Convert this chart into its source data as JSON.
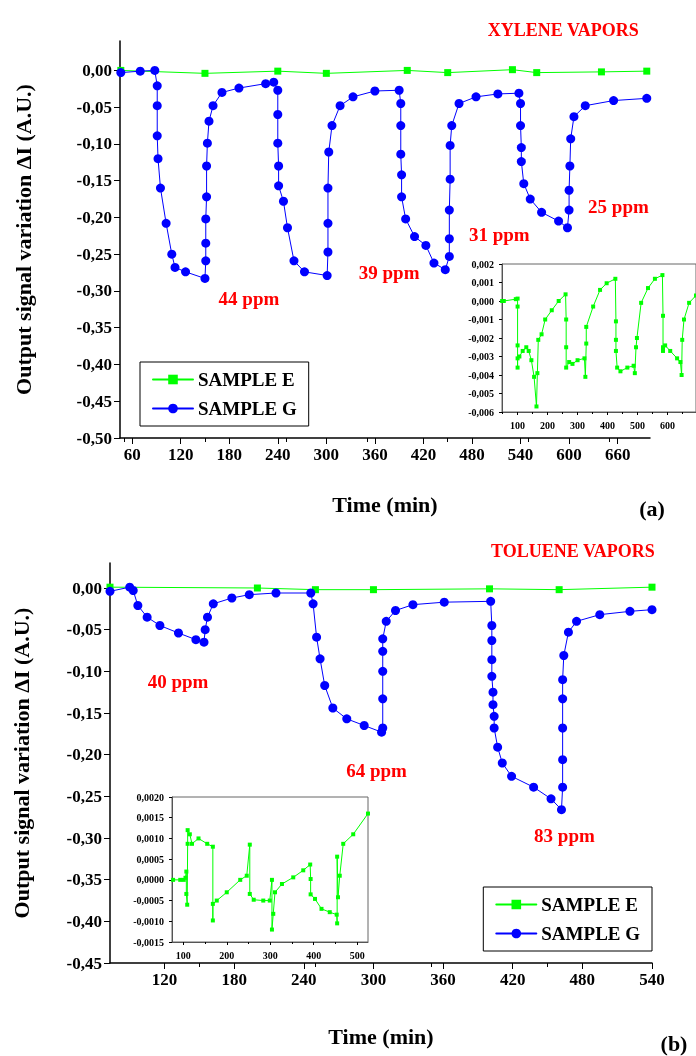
{
  "chart_data": [
    {
      "type": "line",
      "title": "XYLENE VAPORS",
      "xlabel": "Time (min)",
      "ylabel": "Output signal variation ΔI (A.U.)",
      "legend": "bottom left",
      "xlim": [
        45,
        700
      ],
      "xticks": [
        60,
        120,
        180,
        240,
        300,
        360,
        420,
        480,
        540,
        600,
        660
      ],
      "ylim": [
        -0.5,
        0.04
      ],
      "yticks": [
        {
          "value": 0,
          "label": "0,00"
        },
        {
          "value": -0.05,
          "label": "-0,05"
        },
        {
          "value": -0.1,
          "label": "-0,10"
        },
        {
          "value": -0.15,
          "label": "-0,15"
        },
        {
          "value": -0.2,
          "label": "-0,20"
        },
        {
          "value": -0.25,
          "label": "-0,25"
        },
        {
          "value": -0.3,
          "label": "-0,30"
        },
        {
          "value": -0.35,
          "label": "-0,35"
        },
        {
          "value": -0.4,
          "label": "-0,40"
        },
        {
          "value": -0.45,
          "label": "-0,45"
        },
        {
          "value": -0.5,
          "label": "-0,50"
        }
      ],
      "series": [
        {
          "name": "SAMPLE E",
          "color": "#00ff00",
          "marker": "square",
          "x": [
            46,
            150,
            240,
            300,
            400,
            450,
            530,
            560,
            640,
            696
          ],
          "values": [
            0,
            -0.004,
            -0.001,
            -0.004,
            0,
            -0.003,
            0.001,
            -0.003,
            -0.002,
            -0.001
          ]
        },
        {
          "name": "SAMPLE G",
          "color": "#0000ff",
          "marker": "circle",
          "x": [
            46,
            70,
            88,
            91,
            91,
            91,
            92,
            95,
            102,
            109,
            113,
            126,
            150,
            151,
            151,
            151,
            152,
            152,
            153,
            155,
            160,
            171,
            192,
            225,
            235,
            240,
            240,
            240,
            241,
            241,
            247,
            252,
            260,
            273,
            301,
            302,
            302,
            302,
            303,
            307,
            317,
            333,
            360,
            390,
            392,
            392,
            392,
            393,
            393,
            398,
            409,
            423,
            433,
            447,
            452,
            452,
            452,
            453,
            453,
            455,
            464,
            485,
            512,
            538,
            540,
            540,
            541,
            541,
            544,
            552,
            566,
            587,
            598,
            600,
            600,
            601,
            602,
            606,
            620,
            655,
            696
          ],
          "values": [
            -0.003,
            -0.001,
            0,
            -0.021,
            -0.048,
            -0.089,
            -0.12,
            -0.16,
            -0.208,
            -0.25,
            -0.268,
            -0.274,
            -0.283,
            -0.259,
            -0.235,
            -0.202,
            -0.172,
            -0.13,
            -0.099,
            -0.069,
            -0.048,
            -0.03,
            -0.024,
            -0.018,
            -0.016,
            -0.027,
            -0.06,
            -0.099,
            -0.13,
            -0.157,
            -0.178,
            -0.214,
            -0.259,
            -0.274,
            -0.279,
            -0.247,
            -0.208,
            -0.16,
            -0.111,
            -0.075,
            -0.048,
            -0.036,
            -0.028,
            -0.027,
            -0.045,
            -0.075,
            -0.114,
            -0.142,
            -0.172,
            -0.202,
            -0.226,
            -0.238,
            -0.262,
            -0.271,
            -0.253,
            -0.229,
            -0.19,
            -0.148,
            -0.102,
            -0.075,
            -0.045,
            -0.036,
            -0.032,
            -0.031,
            -0.045,
            -0.075,
            -0.105,
            -0.124,
            -0.154,
            -0.175,
            -0.193,
            -0.205,
            -0.214,
            -0.19,
            -0.163,
            -0.13,
            -0.093,
            -0.063,
            -0.048,
            -0.041,
            -0.038
          ]
        }
      ],
      "annotations": [
        {
          "text": "44 ppm",
          "x": 150,
          "y": -0.283
        },
        {
          "text": "39 ppm",
          "x": 301,
          "y": -0.279
        },
        {
          "text": "31 ppm",
          "x": 447,
          "y": -0.271
        },
        {
          "text": "25 ppm",
          "x": 598,
          "y": -0.214
        },
        "(a)"
      ]
    },
    {
      "type": "line",
      "xlim": [
        48,
        695
      ],
      "xticks": [
        100,
        200,
        300,
        400,
        500,
        600
      ],
      "ylim": [
        -0.006,
        0.002
      ],
      "yticks": [
        {
          "value": 0.002,
          "label": "0,002"
        },
        {
          "value": 0.001,
          "label": "0,001"
        },
        {
          "value": 0,
          "label": "0,000"
        },
        {
          "value": -0.001,
          "label": "-0,001"
        },
        {
          "value": -0.002,
          "label": "-0,002"
        },
        {
          "value": -0.003,
          "label": "-0,003"
        },
        {
          "value": -0.004,
          "label": "-0,004"
        },
        {
          "value": -0.005,
          "label": "-0,005"
        },
        {
          "value": -0.006,
          "label": "-0,006"
        }
      ],
      "series": [
        {
          "color": "#00ff00",
          "marker": "square",
          "x": [
            48.5,
            54,
            94,
            100,
            100,
            100,
            100,
            100,
            106,
            117,
            129,
            137,
            146,
            155,
            163,
            166,
            169,
            180,
            192,
            214,
            237,
            260,
            262,
            262,
            262,
            272,
            283,
            300,
            323,
            326,
            329,
            329,
            352,
            375,
            397,
            426,
            428,
            428,
            428,
            432,
            443,
            466,
            487,
            491,
            495,
            498,
            512,
            535,
            558,
            583,
            585,
            585,
            585,
            592,
            609,
            632,
            643,
            647,
            649,
            655,
            672,
            695
          ],
          "values": [
            0,
            0,
            0.0001,
            0.00013,
            -0.0003,
            -0.0024,
            -0.0036,
            -0.0031,
            -0.003,
            -0.0027,
            -0.0025,
            -0.0027,
            -0.0032,
            -0.0041,
            -0.0057,
            -0.0039,
            -0.0021,
            -0.0018,
            -0.001,
            -0.0005,
            0,
            0.00036,
            -0.001,
            -0.0025,
            -0.0036,
            -0.0033,
            -0.0034,
            -0.0032,
            -0.0031,
            -0.0041,
            -0.0023,
            -0.0014,
            -0.0003,
            0.0006,
            0.00096,
            0.0012,
            -0.0011,
            -0.0021,
            -0.0027,
            -0.0036,
            -0.0038,
            -0.0036,
            -0.0035,
            -0.0039,
            -0.0025,
            -0.002,
            -0.0001,
            0.0007,
            0.0012,
            0.0014,
            -0.0008,
            -0.0025,
            -0.0027,
            -0.0024,
            -0.0027,
            -0.0031,
            -0.0033,
            -0.004,
            -0.0021,
            -0.001,
            -0.0001,
            0.0003
          ]
        }
      ]
    },
    {
      "type": "line",
      "title": "TOLUENE VAPORS",
      "xlabel": "Time (min)",
      "ylabel": "Output signal variation ΔI (A.U.)",
      "legend": "bottom right",
      "xlim": [
        73,
        540
      ],
      "xticks": [
        120,
        180,
        240,
        300,
        360,
        420,
        480,
        540
      ],
      "ylim": [
        -0.45,
        0.03
      ],
      "yticks": [
        {
          "value": 0,
          "label": "0,00"
        },
        {
          "value": -0.05,
          "label": "-0,05"
        },
        {
          "value": -0.1,
          "label": "-0,10"
        },
        {
          "value": -0.15,
          "label": "-0,15"
        },
        {
          "value": -0.2,
          "label": "-0,20"
        },
        {
          "value": -0.25,
          "label": "-0,25"
        },
        {
          "value": -0.3,
          "label": "-0,30"
        },
        {
          "value": -0.35,
          "label": "-0,35"
        },
        {
          "value": -0.4,
          "label": "-0,40"
        },
        {
          "value": -0.45,
          "label": "-0,45"
        }
      ],
      "series": [
        {
          "name": "SAMPLE E",
          "color": "#00ff00",
          "marker": "square",
          "x": [
            73,
            200,
            250,
            300,
            400,
            460,
            540
          ],
          "values": [
            0.001,
            0,
            -0.002,
            -0.002,
            -0.001,
            -0.002,
            0.001
          ]
        },
        {
          "name": "SAMPLE G",
          "color": "#0000ff",
          "marker": "circle",
          "x": [
            73,
            90,
            93,
            97,
            105,
            116,
            132,
            147,
            154,
            155,
            157,
            162,
            178,
            193,
            216,
            246,
            248,
            251,
            254,
            258,
            265,
            277,
            292,
            307,
            308,
            308,
            308,
            308,
            308,
            311,
            319,
            334,
            361,
            401,
            402,
            402,
            402,
            402,
            403,
            403,
            404,
            404,
            407,
            411,
            419,
            438,
            453,
            462,
            463,
            463,
            463,
            463,
            463,
            464,
            468,
            475,
            495,
            521,
            540
          ],
          "values": [
            -0.004,
            0.001,
            -0.003,
            -0.021,
            -0.035,
            -0.045,
            -0.054,
            -0.062,
            -0.065,
            -0.05,
            -0.035,
            -0.019,
            -0.012,
            -0.008,
            -0.006,
            -0.006,
            -0.019,
            -0.059,
            -0.085,
            -0.117,
            -0.144,
            -0.157,
            -0.165,
            -0.173,
            -0.168,
            -0.133,
            -0.1,
            -0.076,
            -0.061,
            -0.04,
            -0.027,
            -0.02,
            -0.017,
            -0.016,
            -0.045,
            -0.063,
            -0.086,
            -0.106,
            -0.125,
            -0.14,
            -0.154,
            -0.168,
            -0.191,
            -0.21,
            -0.226,
            -0.239,
            -0.253,
            -0.266,
            -0.239,
            -0.206,
            -0.168,
            -0.133,
            -0.11,
            -0.081,
            -0.053,
            -0.04,
            -0.032,
            -0.028,
            -0.026
          ]
        }
      ],
      "annotations": [
        {
          "text": "40 ppm",
          "x": 154,
          "y": -0.065
        },
        {
          "text": "64 ppm",
          "x": 307,
          "y": -0.173
        },
        {
          "text": "83 ppm",
          "x": 462,
          "y": -0.266
        },
        "(b)"
      ]
    },
    {
      "type": "line",
      "xlim": [
        74,
        525
      ],
      "xticks": [
        100,
        200,
        300,
        400,
        500
      ],
      "ylim": [
        -0.0015,
        0.002
      ],
      "yticks": [
        {
          "value": 0.002,
          "label": "0,0020"
        },
        {
          "value": 0.0015,
          "label": "0,0015"
        },
        {
          "value": 0.001,
          "label": "0,0010"
        },
        {
          "value": 0.0005,
          "label": "0,0005"
        },
        {
          "value": 0,
          "label": "0,0000"
        },
        {
          "value": -0.0005,
          "label": "-0,0005"
        },
        {
          "value": -0.001,
          "label": "-0,0010"
        },
        {
          "value": -0.0015,
          "label": "-0,0015"
        }
      ],
      "series": [
        {
          "color": "#00ff00",
          "marker": "square",
          "x": [
            76.5,
            93,
            101,
            105,
            107,
            107,
            109,
            110,
            110,
            115,
            120,
            135,
            155,
            168,
            168,
            168,
            177,
            200,
            231,
            246,
            253,
            253,
            262,
            284,
            299,
            304,
            304,
            307,
            311,
            327,
            353,
            376,
            392,
            393,
            393,
            403,
            418,
            437,
            453,
            454,
            454,
            456,
            460,
            468,
            491,
            525
          ],
          "values": [
            0,
            0,
            0,
            5e-05,
            0.0002,
            -0.00034,
            -0.0006,
            0.00087,
            0.0012,
            0.0011,
            0.00087,
            0.001,
            0.00087,
            0.0008,
            -0.00098,
            -0.00058,
            -0.0005,
            -0.0003,
            0,
            0.0001,
            0.00085,
            -0.00034,
            -0.00048,
            -0.0005,
            -0.0005,
            0,
            -0.0012,
            -0.00082,
            -0.0003,
            -0.0001,
            6e-05,
            0.00023,
            0.00037,
            2e-05,
            -0.00035,
            -0.00046,
            -0.0007,
            -0.00078,
            -0.00084,
            -0.00105,
            0.00056,
            -0.00042,
            0.0001,
            0.00087,
            0.0011,
            0.0016
          ]
        }
      ]
    }
  ]
}
